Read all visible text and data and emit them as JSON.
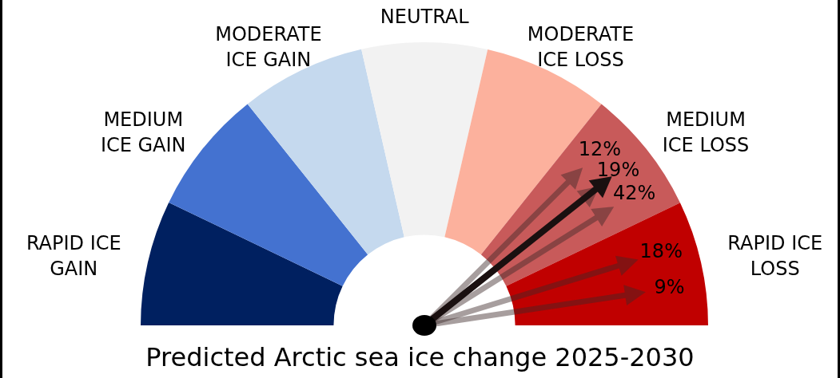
{
  "chart_data": {
    "type": "donut",
    "title": "Predicted Arctic sea ice change 2025-2030",
    "categories": [
      "RAPID ICE GAIN",
      "MEDIUM ICE GAIN",
      "MODERATE ICE GAIN",
      "NEUTRAL",
      "MODERATE ICE LOSS",
      "MEDIUM ICE LOSS",
      "RAPID ICE LOSS"
    ],
    "values": [
      14.29,
      14.29,
      14.29,
      14.29,
      14.29,
      14.29,
      14.26
    ],
    "colors": [
      "#002060",
      "#4472d0",
      "#c5d9ee",
      "#f2f2f2",
      "#fcb19d",
      "#c85a5a",
      "#c00000"
    ],
    "needle": "MEDIUM ICE LOSS",
    "annotations": [
      {
        "text": "12%",
        "x": "MEDIUM ICE LOSS"
      },
      {
        "text": "19%",
        "x": "MEDIUM ICE LOSS"
      },
      {
        "text": "42%",
        "x": "MEDIUM ICE LOSS"
      },
      {
        "text": "18%",
        "x": "RAPID ICE LOSS"
      },
      {
        "text": "9%",
        "x": "RAPID ICE LOSS"
      }
    ],
    "legend": false
  }
}
